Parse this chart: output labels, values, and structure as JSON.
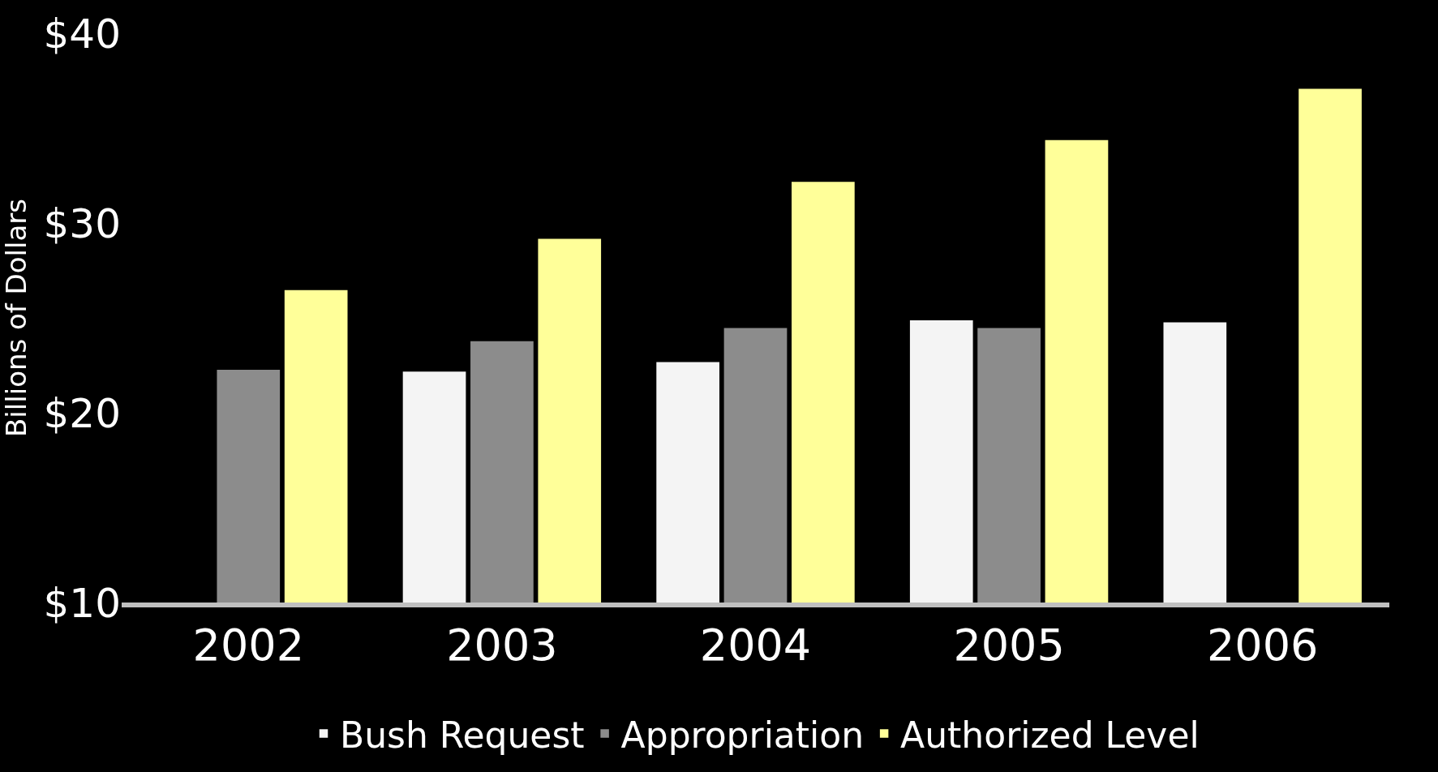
{
  "chart_data": {
    "type": "bar",
    "ylabel": "Billions of Dollars",
    "categories": [
      "2002",
      "2003",
      "2004",
      "2005",
      "2006"
    ],
    "series": [
      {
        "name": "Bush Request",
        "color": "#f4f4f4",
        "values": [
          null,
          22.2,
          22.7,
          24.9,
          24.8
        ]
      },
      {
        "name": "Appropriation",
        "color": "#8c8c8c",
        "values": [
          22.3,
          23.8,
          24.5,
          24.5,
          null
        ]
      },
      {
        "name": "Authorized Level",
        "color": "#ffff99",
        "values": [
          26.5,
          29.2,
          32.2,
          34.4,
          37.1
        ]
      }
    ],
    "ylim": [
      10,
      40
    ],
    "yticks": [
      {
        "value": 10,
        "label": "$10"
      },
      {
        "value": 20,
        "label": "$20"
      },
      {
        "value": 30,
        "label": "$30"
      },
      {
        "value": 40,
        "label": "$40"
      }
    ],
    "grid": false,
    "legend": "bottom"
  }
}
